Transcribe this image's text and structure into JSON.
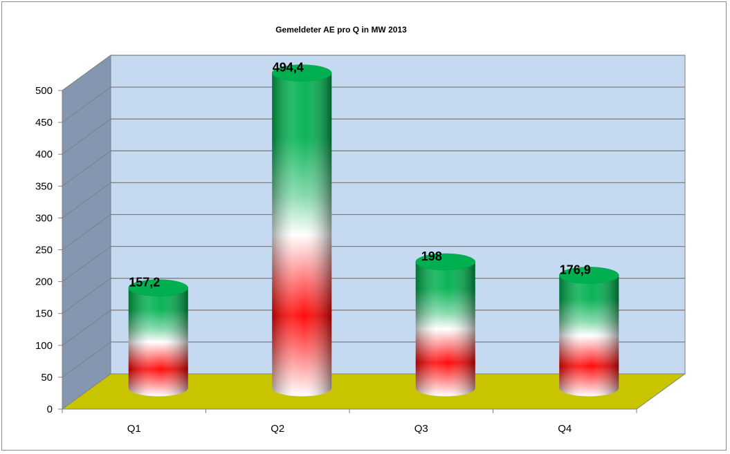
{
  "chart_data": {
    "type": "bar",
    "title": "Gemeldeter AE pro  Q in MW  2013",
    "categories": [
      "Q1",
      "Q2",
      "Q3",
      "Q4"
    ],
    "values": [
      157.2,
      494.4,
      198,
      176.9
    ],
    "data_labels": [
      "157,2",
      "494,4",
      "198",
      "176,9"
    ],
    "xlabel": "",
    "ylabel": "",
    "ylim": [
      0,
      500
    ],
    "yticks": [
      0,
      50,
      100,
      150,
      200,
      250,
      300,
      350,
      400,
      450,
      500
    ],
    "grid": true,
    "legend": "none",
    "style": "3d-cylinder",
    "colors": {
      "wall": "#c5d9f1",
      "side_wall": "#8496b0",
      "floor": "#c8c400",
      "bar_top": "#00b050",
      "bar_mid": "#ff0000",
      "bar_light": "#ffffff"
    }
  }
}
